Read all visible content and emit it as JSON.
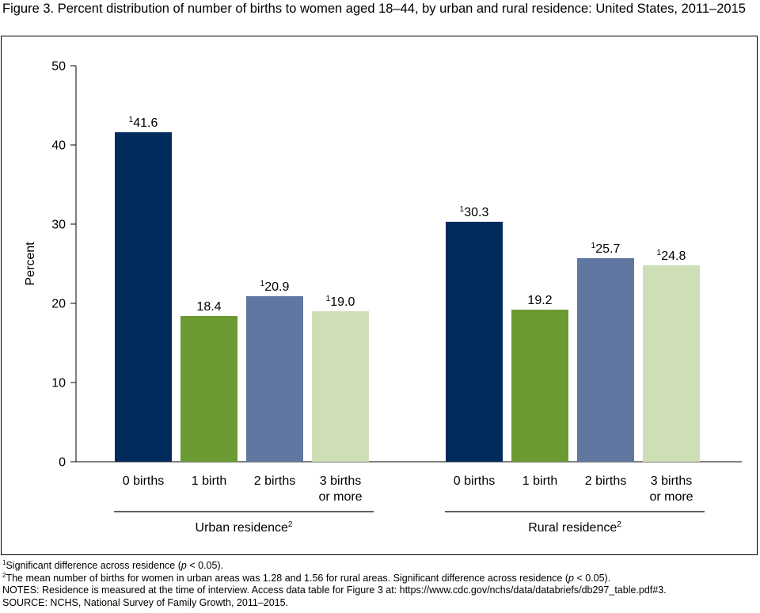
{
  "title": "Figure 3. Percent distribution of number of births to women aged 18–44, by urban and rural residence: United States, 2011–2015",
  "chart_data": {
    "type": "bar",
    "ylabel": "Percent",
    "ylim": [
      0,
      50
    ],
    "yticks": [
      "0",
      "10",
      "20",
      "30",
      "40",
      "50"
    ],
    "grid": false,
    "categories": [
      "0 births",
      "1 birth",
      "2 births",
      "3 births or more"
    ],
    "category_lines": [
      [
        "0 births"
      ],
      [
        "1 birth"
      ],
      [
        "2 births"
      ],
      [
        "3 births",
        "or more"
      ]
    ],
    "colors": [
      "#002b5c",
      "#6a9a31",
      "#6078a1",
      "#cedfb6"
    ],
    "groups": [
      {
        "label": "Urban residence",
        "label_sup": "2",
        "values": [
          41.6,
          18.4,
          20.9,
          19.0
        ],
        "value_labels": [
          "41.6",
          "18.4",
          "20.9",
          "19.0"
        ],
        "value_sups": [
          "1",
          "",
          "1",
          "1"
        ]
      },
      {
        "label": "Rural residence",
        "label_sup": "2",
        "values": [
          30.3,
          19.2,
          25.7,
          24.8
        ],
        "value_labels": [
          "30.3",
          "19.2",
          "25.7",
          "24.8"
        ],
        "value_sups": [
          "1",
          "",
          "1",
          "1"
        ]
      }
    ]
  },
  "footnotes": {
    "fn1": {
      "sup": "1",
      "text_before": "Significant difference across residence (",
      "p": "p",
      "text_after": " < 0.05)."
    },
    "fn2": {
      "sup": "2",
      "text_before": "The mean number of births for women in urban areas was 1.28 and 1.56 for rural areas. Significant difference across residence (",
      "p": "p",
      "text_after": " < 0.05)."
    },
    "notes": "NOTES: Residence is measured at the time of interview. Access data table for Figure 3 at: https://www.cdc.gov/nchs/data/databriefs/db297_table.pdf#3.",
    "source": "SOURCE: NCHS, National Survey of Family Growth, 2011–2015."
  }
}
